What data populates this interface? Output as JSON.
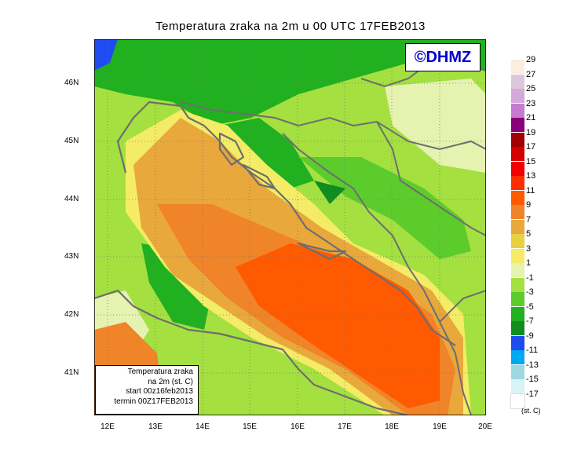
{
  "title": "Temperatura zraka na 2m u 00 UTC 17FEB2013",
  "logo": "©DHMZ",
  "info": {
    "line1": "Temperatura zraka",
    "line2": "na 2m (st. C)",
    "line3": "start 00z16feb2013",
    "line4": "termin 00Z17FEB2013"
  },
  "lat_labels": [
    "46N",
    "45N",
    "44N",
    "43N",
    "42N",
    "41N"
  ],
  "lon_labels": [
    "12E",
    "13E",
    "14E",
    "15E",
    "16E",
    "17E",
    "18E",
    "19E",
    "20E"
  ],
  "colorbar": {
    "unit": "(st. C)",
    "levels": [
      {
        "label": "29",
        "color": "#fbeee0"
      },
      {
        "label": "27",
        "color": "#dcc8dc"
      },
      {
        "label": "25",
        "color": "#d4a8d8"
      },
      {
        "label": "23",
        "color": "#c67ad0"
      },
      {
        "label": "21",
        "color": "#8a007a"
      },
      {
        "label": "19",
        "color": "#a00000"
      },
      {
        "label": "17",
        "color": "#d40000"
      },
      {
        "label": "15",
        "color": "#f00000"
      },
      {
        "label": "13",
        "color": "#ff2c00"
      },
      {
        "label": "11",
        "color": "#ff5a00"
      },
      {
        "label": "9",
        "color": "#f08428"
      },
      {
        "label": "7",
        "color": "#e8a83c"
      },
      {
        "label": "5",
        "color": "#e8d040"
      },
      {
        "label": "3",
        "color": "#f4ec66"
      },
      {
        "label": "1",
        "color": "#e6f2b0"
      },
      {
        "label": "-1",
        "color": "#a4e040"
      },
      {
        "label": "-3",
        "color": "#5ccc2c"
      },
      {
        "label": "-5",
        "color": "#20b020"
      },
      {
        "label": "-7",
        "color": "#108c20"
      },
      {
        "label": "-9",
        "color": "#1e4cf0"
      },
      {
        "label": "-11",
        "color": "#00a8f0"
      },
      {
        "label": "-13",
        "color": "#a0d8e0"
      },
      {
        "label": "-15",
        "color": "#d8f4f4"
      },
      {
        "label": "-17",
        "color": "#ffffff"
      }
    ]
  }
}
